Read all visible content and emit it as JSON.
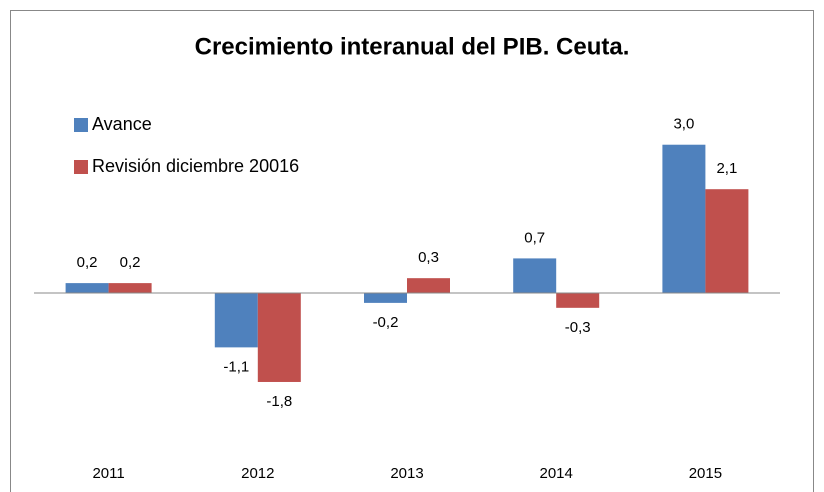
{
  "chart_data": {
    "type": "bar",
    "title": "Crecimiento interanual del PIB. Ceuta.",
    "categories": [
      "2011",
      "2012",
      "2013",
      "2014",
      "2015"
    ],
    "series": [
      {
        "name": "Avance",
        "color": "#4f81bd",
        "values": [
          0.2,
          -1.1,
          -0.2,
          0.7,
          3.0
        ],
        "value_labels": [
          "0,2",
          "-1,1",
          "-0,2",
          "0,7",
          "3,0"
        ]
      },
      {
        "name": "Revisión diciembre 20016",
        "color": "#c0504d",
        "values": [
          0.2,
          -1.8,
          0.3,
          -0.3,
          2.1
        ],
        "value_labels": [
          "0,2",
          "-1,8",
          "0,3",
          "-0,3",
          "2,1"
        ]
      }
    ],
    "ylim": [
      -3.5,
      3.5
    ],
    "legend": "top-left"
  }
}
